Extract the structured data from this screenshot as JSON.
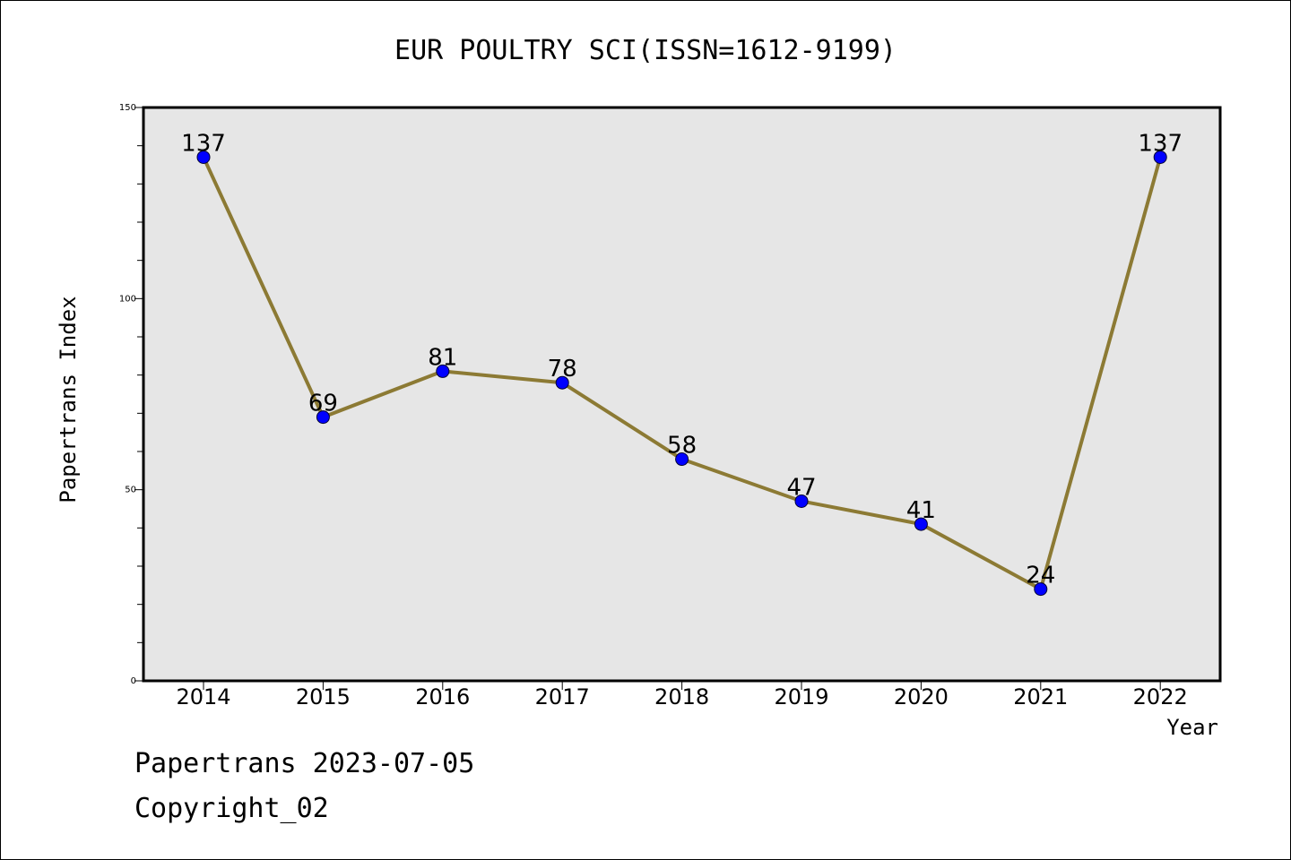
{
  "chart_data": {
    "type": "line",
    "title": "EUR POULTRY SCI(ISSN=1612-9199)",
    "xlabel": "Year",
    "ylabel": "Papertrans Index",
    "categories": [
      "2014",
      "2015",
      "2016",
      "2017",
      "2018",
      "2019",
      "2020",
      "2021",
      "2022"
    ],
    "series": [
      {
        "values": [
          137,
          69,
          81,
          78,
          58,
          47,
          41,
          24,
          137
        ]
      }
    ],
    "ylim": [
      0,
      150
    ],
    "yticks": [
      0,
      50,
      100,
      150
    ],
    "grid": false,
    "colors": {
      "line": "#8c7a34",
      "marker": "#0000ff",
      "plot_background": "#e6e6e6"
    }
  },
  "footer": {
    "date_label": "Papertrans 2023-07-05",
    "copyright_label": "Copyright_02"
  }
}
